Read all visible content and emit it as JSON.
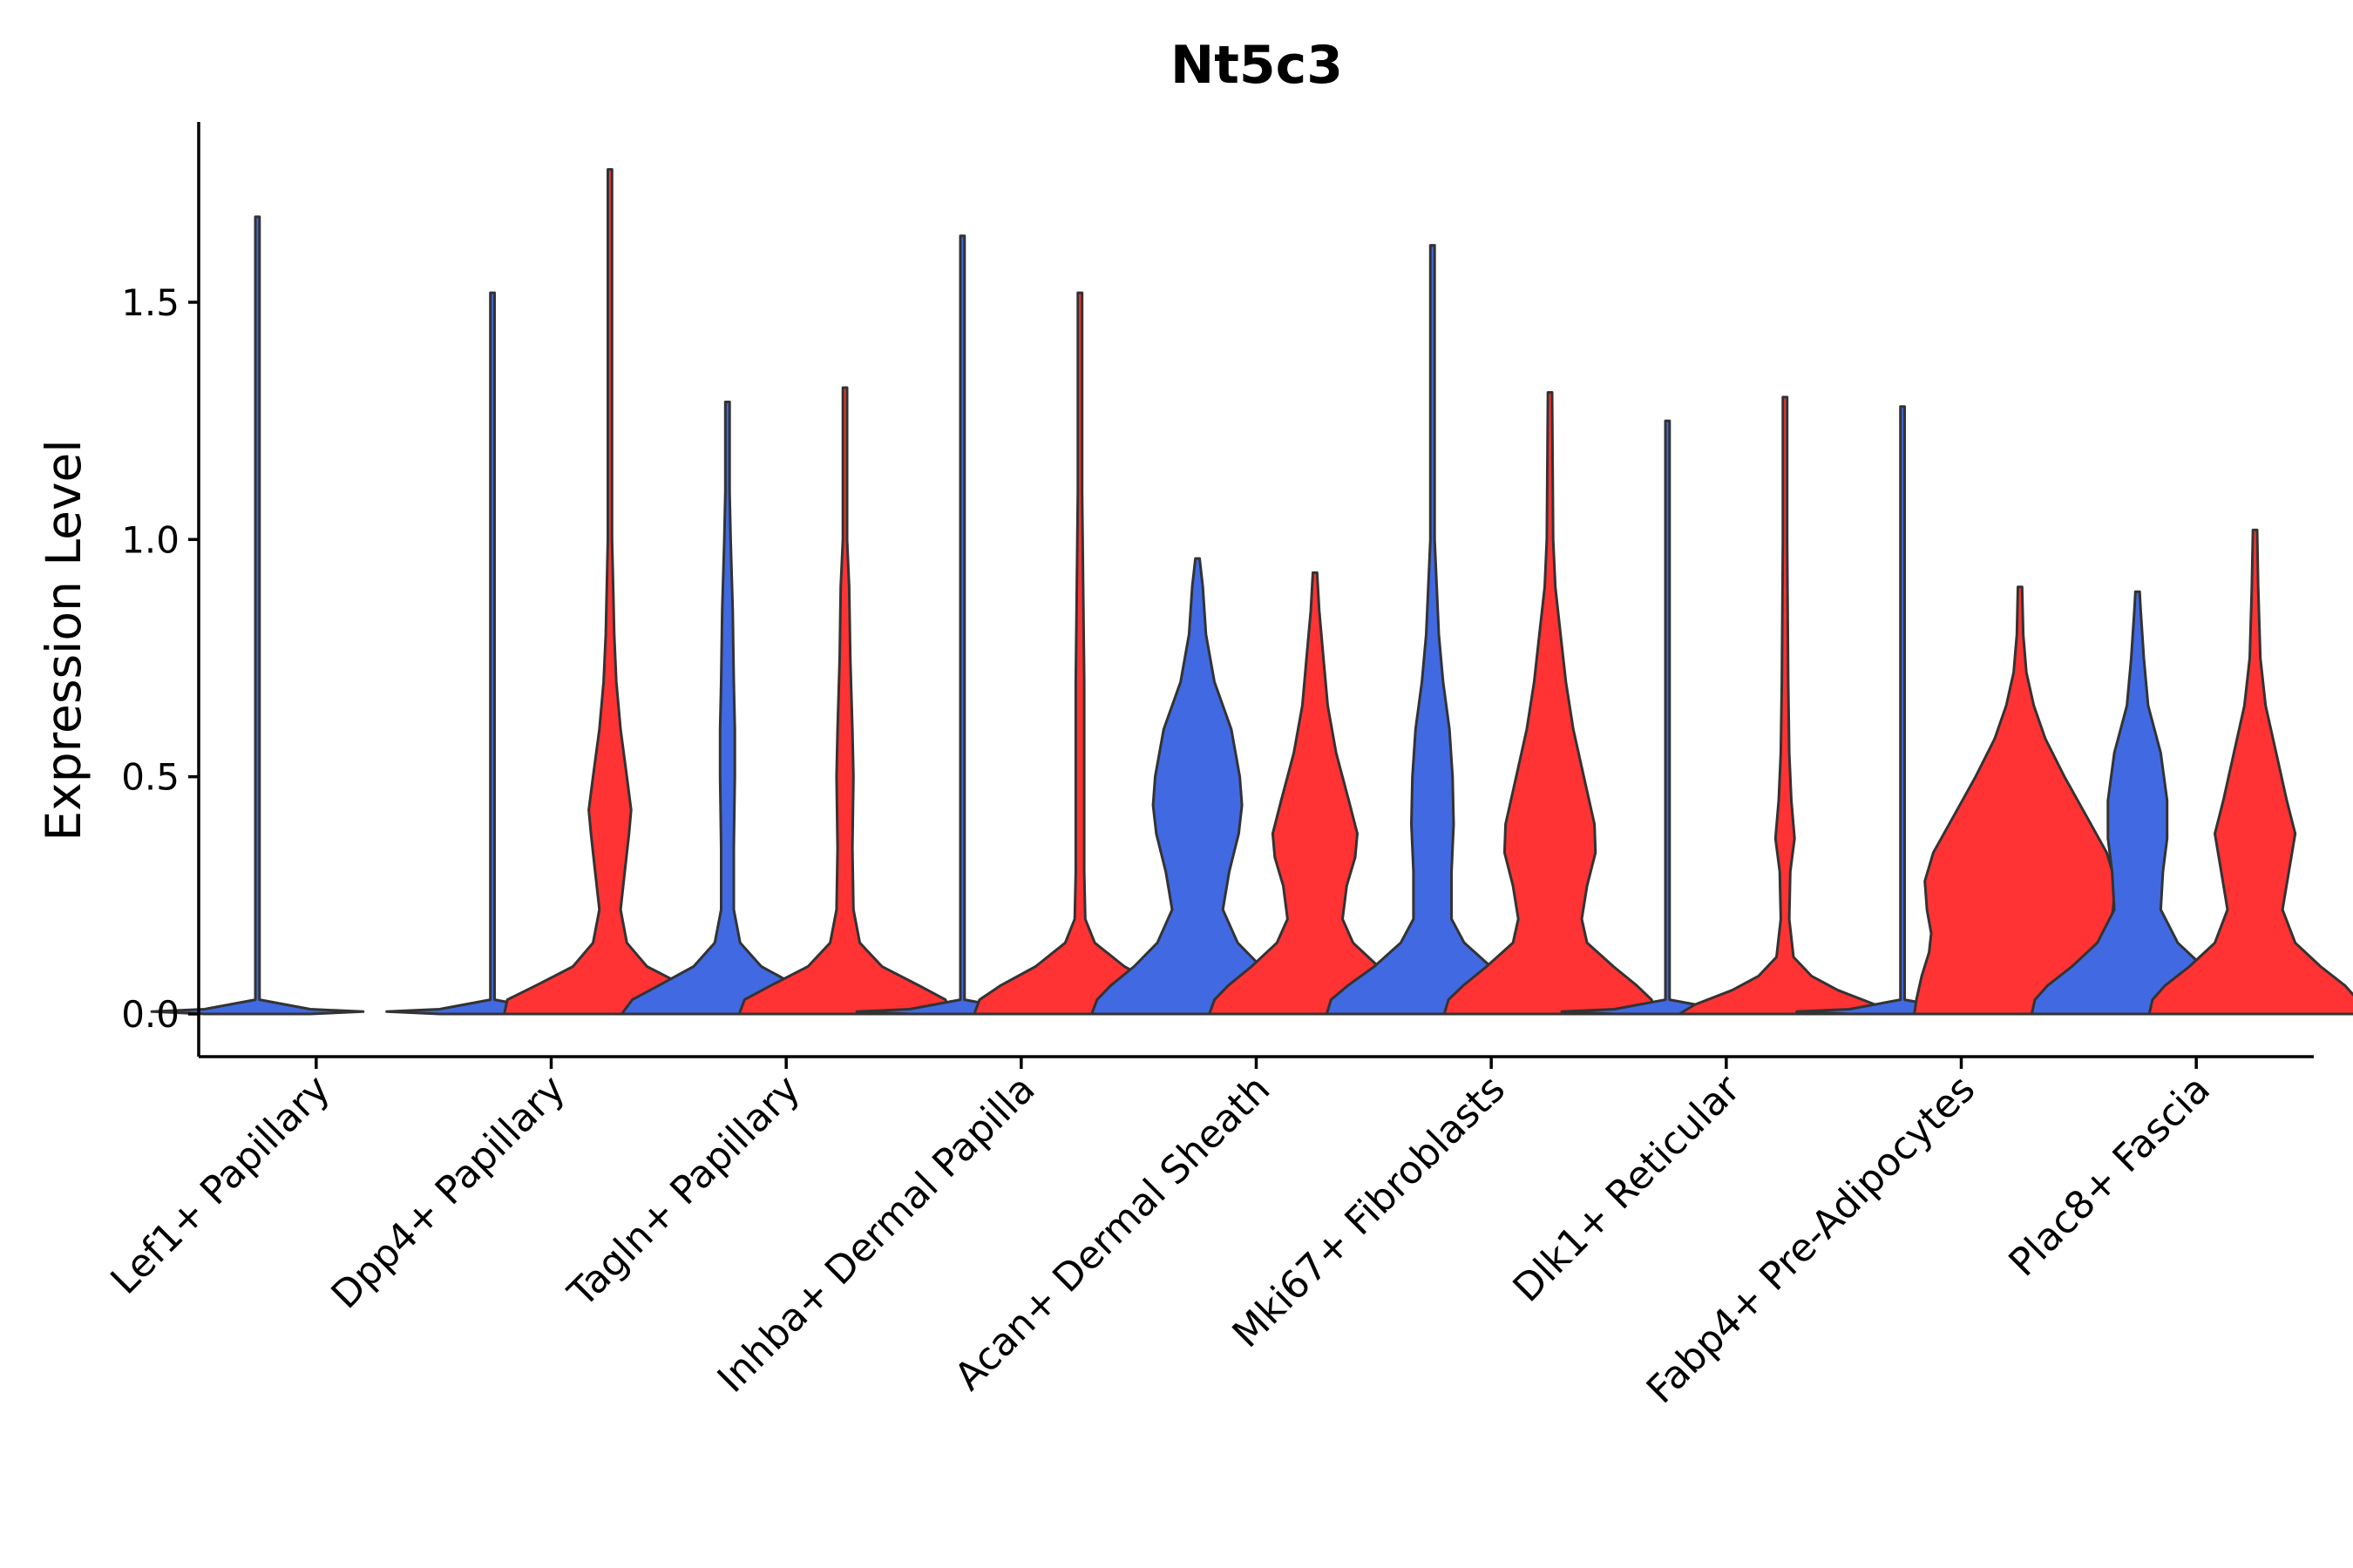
{
  "chart_data": {
    "type": "violin",
    "title": "Nt5c3",
    "xlabel": "",
    "ylabel": "Expression Level",
    "ylim": [
      -0.09,
      1.88
    ],
    "yticks": [
      0.0,
      0.5,
      1.0,
      1.5
    ],
    "ytick_labels": [
      "0.0",
      "0.5",
      "1.0",
      "1.5"
    ],
    "grid": false,
    "legend": "none",
    "colors": {
      "group_a": "#4169e1",
      "group_b": "#ff3333",
      "outline": "#333333"
    },
    "categories": [
      "Lef1+ Papillary",
      "Dpp4+ Papillary",
      "Tagln+ Papillary",
      "Inhba+ Dermal Papilla",
      "Acan+ Dermal Sheath",
      "Mki67+ Fibroblasts",
      "Dlk1+ Reticular",
      "Fabp4+ Pre-Adipocytes",
      "Plac8+ Fascia"
    ],
    "violins": [
      {
        "category": "Lef1+ Papillary",
        "group": "a",
        "max": 1.68,
        "density": [
          [
            0.0,
            0.5
          ],
          [
            0.005,
            1.0
          ],
          [
            0.01,
            0.5
          ],
          [
            0.03,
            0.02
          ],
          [
            1.68,
            0.02
          ]
        ]
      },
      {
        "category": "Dpp4+ Papillary",
        "group": "a",
        "max": 1.52,
        "density": [
          [
            0.0,
            0.5
          ],
          [
            0.005,
            1.0
          ],
          [
            0.01,
            0.5
          ],
          [
            0.03,
            0.02
          ],
          [
            1.52,
            0.02
          ]
        ]
      },
      {
        "category": "Dpp4+ Papillary",
        "group": "b",
        "max": 1.78,
        "density": [
          [
            0.0,
            1.0
          ],
          [
            0.03,
            0.97
          ],
          [
            0.06,
            0.7
          ],
          [
            0.1,
            0.35
          ],
          [
            0.15,
            0.16
          ],
          [
            0.22,
            0.1
          ],
          [
            0.3,
            0.14
          ],
          [
            0.38,
            0.18
          ],
          [
            0.43,
            0.2
          ],
          [
            0.5,
            0.16
          ],
          [
            0.6,
            0.1
          ],
          [
            0.7,
            0.06
          ],
          [
            0.8,
            0.04
          ],
          [
            0.9,
            0.03
          ],
          [
            1.0,
            0.02
          ],
          [
            1.78,
            0.02
          ]
        ]
      },
      {
        "category": "Tagln+ Papillary",
        "group": "a",
        "max": 1.29,
        "density": [
          [
            0.0,
            1.0
          ],
          [
            0.03,
            0.9
          ],
          [
            0.06,
            0.65
          ],
          [
            0.1,
            0.32
          ],
          [
            0.15,
            0.12
          ],
          [
            0.22,
            0.06
          ],
          [
            0.35,
            0.06
          ],
          [
            0.5,
            0.07
          ],
          [
            0.6,
            0.07
          ],
          [
            0.7,
            0.06
          ],
          [
            0.85,
            0.05
          ],
          [
            1.0,
            0.03
          ],
          [
            1.1,
            0.02
          ],
          [
            1.29,
            0.02
          ]
        ]
      },
      {
        "category": "Tagln+ Papillary",
        "group": "b",
        "max": 1.32,
        "density": [
          [
            0.0,
            1.0
          ],
          [
            0.03,
            0.95
          ],
          [
            0.06,
            0.7
          ],
          [
            0.1,
            0.35
          ],
          [
            0.15,
            0.14
          ],
          [
            0.22,
            0.08
          ],
          [
            0.35,
            0.07
          ],
          [
            0.5,
            0.08
          ],
          [
            0.6,
            0.07
          ],
          [
            0.75,
            0.05
          ],
          [
            0.9,
            0.04
          ],
          [
            1.0,
            0.02
          ],
          [
            1.32,
            0.02
          ]
        ]
      },
      {
        "category": "Inhba+ Dermal Papilla",
        "group": "a",
        "max": 1.64,
        "density": [
          [
            0.0,
            0.5
          ],
          [
            0.005,
            1.0
          ],
          [
            0.01,
            0.5
          ],
          [
            0.03,
            0.02
          ],
          [
            1.64,
            0.02
          ]
        ]
      },
      {
        "category": "Inhba+ Dermal Papilla",
        "group": "b",
        "max": 1.52,
        "density": [
          [
            0.0,
            1.0
          ],
          [
            0.03,
            0.95
          ],
          [
            0.06,
            0.75
          ],
          [
            0.1,
            0.42
          ],
          [
            0.15,
            0.14
          ],
          [
            0.2,
            0.05
          ],
          [
            0.3,
            0.04
          ],
          [
            0.5,
            0.04
          ],
          [
            0.7,
            0.04
          ],
          [
            0.9,
            0.03
          ],
          [
            1.1,
            0.02
          ],
          [
            1.52,
            0.02
          ]
        ]
      },
      {
        "category": "Acan+ Dermal Sheath",
        "group": "a",
        "max": 0.96,
        "density": [
          [
            0.0,
            1.0
          ],
          [
            0.03,
            0.95
          ],
          [
            0.06,
            0.82
          ],
          [
            0.1,
            0.6
          ],
          [
            0.15,
            0.38
          ],
          [
            0.22,
            0.24
          ],
          [
            0.3,
            0.3
          ],
          [
            0.38,
            0.39
          ],
          [
            0.44,
            0.42
          ],
          [
            0.5,
            0.4
          ],
          [
            0.6,
            0.32
          ],
          [
            0.7,
            0.16
          ],
          [
            0.8,
            0.08
          ],
          [
            0.9,
            0.05
          ],
          [
            0.96,
            0.02
          ]
        ]
      },
      {
        "category": "Acan+ Dermal Sheath",
        "group": "b",
        "max": 0.93,
        "density": [
          [
            0.0,
            1.0
          ],
          [
            0.03,
            0.95
          ],
          [
            0.06,
            0.82
          ],
          [
            0.1,
            0.6
          ],
          [
            0.15,
            0.36
          ],
          [
            0.2,
            0.26
          ],
          [
            0.27,
            0.3
          ],
          [
            0.33,
            0.38
          ],
          [
            0.38,
            0.4
          ],
          [
            0.45,
            0.32
          ],
          [
            0.55,
            0.2
          ],
          [
            0.65,
            0.12
          ],
          [
            0.75,
            0.08
          ],
          [
            0.85,
            0.04
          ],
          [
            0.93,
            0.02
          ]
        ]
      },
      {
        "category": "Mki67+ Fibroblasts",
        "group": "a",
        "max": 1.62,
        "density": [
          [
            0.0,
            1.0
          ],
          [
            0.03,
            0.96
          ],
          [
            0.06,
            0.8
          ],
          [
            0.1,
            0.55
          ],
          [
            0.15,
            0.3
          ],
          [
            0.2,
            0.18
          ],
          [
            0.3,
            0.18
          ],
          [
            0.4,
            0.2
          ],
          [
            0.5,
            0.19
          ],
          [
            0.6,
            0.16
          ],
          [
            0.7,
            0.1
          ],
          [
            0.8,
            0.06
          ],
          [
            0.9,
            0.04
          ],
          [
            1.0,
            0.02
          ],
          [
            1.62,
            0.02
          ]
        ]
      },
      {
        "category": "Mki67+ Fibroblasts",
        "group": "b",
        "max": 1.31,
        "density": [
          [
            0.0,
            1.0
          ],
          [
            0.03,
            0.96
          ],
          [
            0.06,
            0.82
          ],
          [
            0.1,
            0.6
          ],
          [
            0.15,
            0.35
          ],
          [
            0.2,
            0.3
          ],
          [
            0.27,
            0.35
          ],
          [
            0.34,
            0.43
          ],
          [
            0.4,
            0.42
          ],
          [
            0.5,
            0.32
          ],
          [
            0.6,
            0.22
          ],
          [
            0.7,
            0.15
          ],
          [
            0.8,
            0.1
          ],
          [
            0.9,
            0.05
          ],
          [
            1.0,
            0.03
          ],
          [
            1.31,
            0.02
          ]
        ]
      },
      {
        "category": "Dlk1+ Reticular",
        "group": "a",
        "max": 1.25,
        "density": [
          [
            0.0,
            0.5
          ],
          [
            0.005,
            1.0
          ],
          [
            0.01,
            0.5
          ],
          [
            0.03,
            0.02
          ],
          [
            1.25,
            0.02
          ]
        ]
      },
      {
        "category": "Dlk1+ Reticular",
        "group": "b",
        "max": 1.3,
        "density": [
          [
            0.0,
            1.0
          ],
          [
            0.02,
            0.85
          ],
          [
            0.05,
            0.5
          ],
          [
            0.08,
            0.25
          ],
          [
            0.12,
            0.08
          ],
          [
            0.2,
            0.04
          ],
          [
            0.3,
            0.05
          ],
          [
            0.37,
            0.09
          ],
          [
            0.45,
            0.06
          ],
          [
            0.55,
            0.04
          ],
          [
            0.7,
            0.03
          ],
          [
            1.0,
            0.02
          ],
          [
            1.3,
            0.02
          ]
        ]
      },
      {
        "category": "Fabp4+ Pre-Adipocytes",
        "group": "a",
        "max": 1.28,
        "density": [
          [
            0.0,
            0.5
          ],
          [
            0.005,
            1.0
          ],
          [
            0.01,
            0.5
          ],
          [
            0.03,
            0.02
          ],
          [
            1.28,
            0.02
          ]
        ]
      },
      {
        "category": "Fabp4+ Pre-Adipocytes",
        "group": "b",
        "max": 0.9,
        "density": [
          [
            0.0,
            1.0
          ],
          [
            0.03,
            0.98
          ],
          [
            0.08,
            0.93
          ],
          [
            0.13,
            0.86
          ],
          [
            0.17,
            0.84
          ],
          [
            0.22,
            0.88
          ],
          [
            0.28,
            0.9
          ],
          [
            0.34,
            0.82
          ],
          [
            0.42,
            0.62
          ],
          [
            0.5,
            0.42
          ],
          [
            0.58,
            0.24
          ],
          [
            0.65,
            0.13
          ],
          [
            0.72,
            0.06
          ],
          [
            0.8,
            0.03
          ],
          [
            0.9,
            0.02
          ]
        ]
      },
      {
        "category": "Plac8+ Fascia",
        "group": "a",
        "max": 0.89,
        "density": [
          [
            0.0,
            1.0
          ],
          [
            0.03,
            0.97
          ],
          [
            0.06,
            0.85
          ],
          [
            0.1,
            0.62
          ],
          [
            0.15,
            0.38
          ],
          [
            0.22,
            0.22
          ],
          [
            0.3,
            0.24
          ],
          [
            0.37,
            0.28
          ],
          [
            0.45,
            0.28
          ],
          [
            0.55,
            0.22
          ],
          [
            0.65,
            0.1
          ],
          [
            0.75,
            0.06
          ],
          [
            0.85,
            0.03
          ],
          [
            0.89,
            0.02
          ]
        ]
      },
      {
        "category": "Plac8+ Fascia",
        "group": "b",
        "max": 1.02,
        "density": [
          [
            0.0,
            1.0
          ],
          [
            0.03,
            0.97
          ],
          [
            0.06,
            0.85
          ],
          [
            0.1,
            0.62
          ],
          [
            0.15,
            0.38
          ],
          [
            0.22,
            0.26
          ],
          [
            0.3,
            0.32
          ],
          [
            0.38,
            0.38
          ],
          [
            0.45,
            0.3
          ],
          [
            0.55,
            0.2
          ],
          [
            0.65,
            0.1
          ],
          [
            0.75,
            0.05
          ],
          [
            0.9,
            0.03
          ],
          [
            1.02,
            0.02
          ]
        ]
      }
    ]
  }
}
